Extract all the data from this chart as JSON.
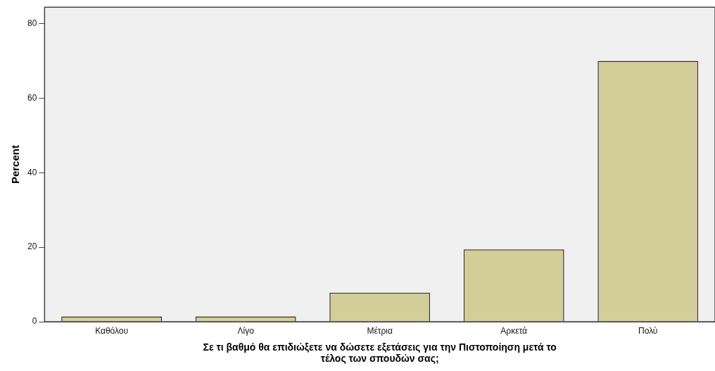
{
  "chart_data": {
    "type": "bar",
    "categories": [
      "Καθόλου",
      "Λίγο",
      "Μέτρια",
      "Αρκετά",
      "Πολύ"
    ],
    "values": [
      1.4,
      1.4,
      7.8,
      19.4,
      70.0
    ],
    "color": "#d3cd97",
    "xlabel": "Σε τι βαθμό θα επιδιώξετε να δώσετε εξετάσεις για την Πιστοποίηση μετά το\nτέλος των σπουδών σας;",
    "ylabel": "Percent",
    "ylim": [
      0,
      84.4
    ],
    "yticks": [
      0,
      20,
      40,
      60,
      80
    ],
    "grid": false,
    "legend": false
  }
}
